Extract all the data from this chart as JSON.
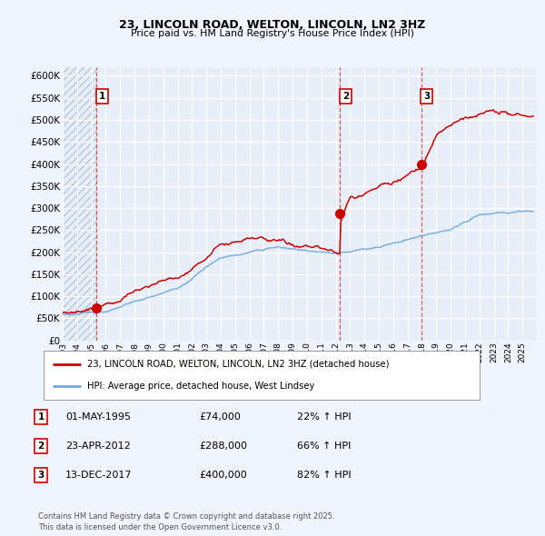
{
  "title": "23, LINCOLN ROAD, WELTON, LINCOLN, LN2 3HZ",
  "subtitle": "Price paid vs. HM Land Registry's House Price Index (HPI)",
  "legend_line1": "23, LINCOLN ROAD, WELTON, LINCOLN, LN2 3HZ (detached house)",
  "legend_line2": "HPI: Average price, detached house, West Lindsey",
  "footer": "Contains HM Land Registry data © Crown copyright and database right 2025.\nThis data is licensed under the Open Government Licence v3.0.",
  "transactions": [
    {
      "label": "1",
      "date": "01-MAY-1995",
      "price": 74000,
      "pct": "22%",
      "x_year": 1995.37
    },
    {
      "label": "2",
      "date": "23-APR-2012",
      "price": 288000,
      "pct": "66%",
      "x_year": 2012.31
    },
    {
      "label": "3",
      "date": "13-DEC-2017",
      "price": 400000,
      "pct": "82%",
      "x_year": 2017.95
    }
  ],
  "price_color": "#cc0000",
  "hpi_color": "#6fa8dc",
  "background_color": "#f0f4fc",
  "plot_bg": "#e8eef8",
  "ylim": [
    0,
    620000
  ],
  "yticks": [
    0,
    50000,
    100000,
    150000,
    200000,
    250000,
    300000,
    350000,
    400000,
    450000,
    500000,
    550000,
    600000
  ],
  "xlim_start": 1993,
  "xlim_end": 2026,
  "xticks": [
    1993,
    1994,
    1995,
    1996,
    1997,
    1998,
    1999,
    2000,
    2001,
    2002,
    2003,
    2004,
    2005,
    2006,
    2007,
    2008,
    2009,
    2010,
    2011,
    2012,
    2013,
    2014,
    2015,
    2016,
    2017,
    2018,
    2019,
    2020,
    2021,
    2022,
    2023,
    2024,
    2025
  ]
}
